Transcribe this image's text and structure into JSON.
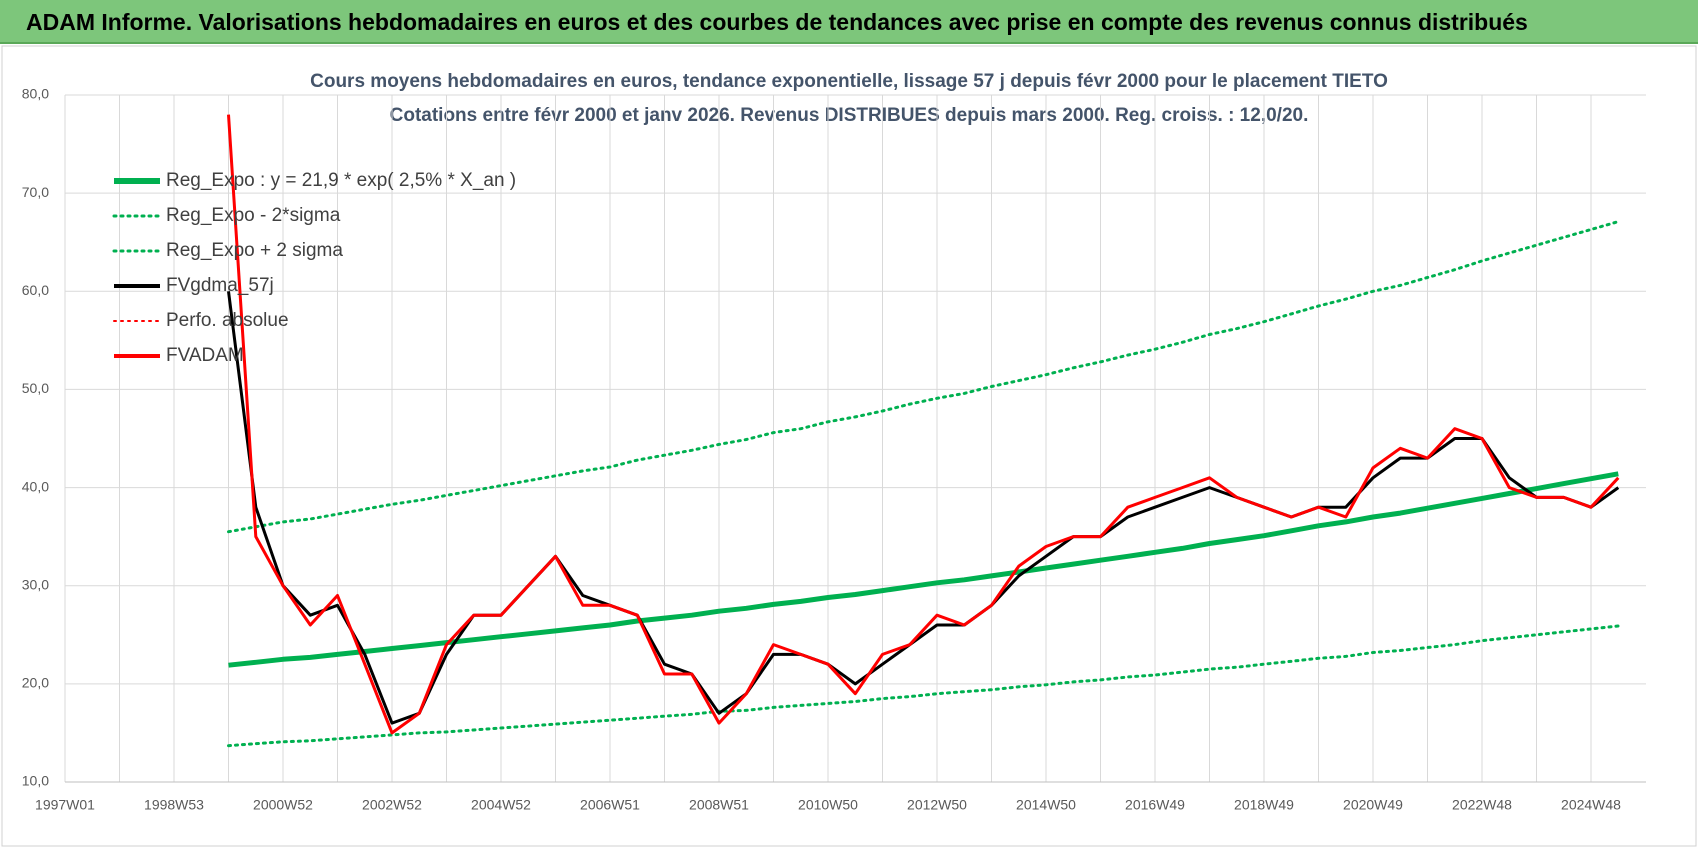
{
  "header": {
    "title": "ADAM Informe. Valorisations hebdomadaires en euros et des courbes de tendances avec prise en compte des revenus connus distribués"
  },
  "chart_data": {
    "type": "line",
    "title": "Cours moyens hebdomadaires en euros, tendance exponentielle, lissage 57 j depuis févr 2000 pour le placement TIETO",
    "subtitle": "Cotations entre févr 2000 et janv 2026. Revenus DISTRIBUES depuis mars 2000. Reg. croiss. : 12,0/20.",
    "categories": [
      "1997W01",
      null,
      null,
      null,
      "1998W53",
      null,
      null,
      null,
      "2000W52",
      null,
      null,
      null,
      "2002W52",
      null,
      null,
      null,
      "2004W52",
      null,
      null,
      null,
      "2006W51",
      null,
      null,
      null,
      "2008W51",
      null,
      null,
      null,
      "2010W50",
      null,
      null,
      null,
      "2012W50",
      null,
      null,
      null,
      "2014W50",
      null,
      null,
      null,
      "2016W49",
      null,
      null,
      null,
      "2018W49",
      null,
      null,
      null,
      "2020W49",
      null,
      null,
      null,
      "2022W48",
      null,
      null,
      null,
      "2024W48",
      null
    ],
    "ylim": [
      10,
      80
    ],
    "yticks": [
      {
        "value": 10,
        "label": "10,0"
      },
      {
        "value": 20,
        "label": "20,0"
      },
      {
        "value": 30,
        "label": "30,0"
      },
      {
        "value": 40,
        "label": "40,0"
      },
      {
        "value": 50,
        "label": "50,0"
      },
      {
        "value": 60,
        "label": "60,0"
      },
      {
        "value": 70,
        "label": "70,0"
      },
      {
        "value": 80,
        "label": "80,0"
      }
    ],
    "grid": true,
    "legend": "top-left",
    "series": [
      {
        "name": "Reg_Expo : y = 21,9 * exp( 2,5% *  X_an )",
        "color": "#00b050",
        "dash": "solid",
        "width": 5,
        "values": [
          null,
          null,
          null,
          null,
          null,
          null,
          21.9,
          22.2,
          22.5,
          22.7,
          23.0,
          23.3,
          23.6,
          23.9,
          24.2,
          24.5,
          24.8,
          25.1,
          25.4,
          25.7,
          26.0,
          26.4,
          26.7,
          27.0,
          27.4,
          27.7,
          28.1,
          28.4,
          28.8,
          29.1,
          29.5,
          29.9,
          30.3,
          30.6,
          31.0,
          31.4,
          31.8,
          32.2,
          32.6,
          33.0,
          33.4,
          33.8,
          34.3,
          34.7,
          35.1,
          35.6,
          36.1,
          36.5,
          37.0,
          37.4,
          37.9,
          38.4,
          38.9,
          39.4,
          39.9,
          40.4,
          40.9,
          41.4
        ]
      },
      {
        "name": "Reg_Expo - 2*sigma",
        "color": "#00b050",
        "dash": "dotted",
        "width": 3,
        "values": [
          null,
          null,
          null,
          null,
          null,
          null,
          13.7,
          13.9,
          14.1,
          14.2,
          14.4,
          14.6,
          14.8,
          15.0,
          15.1,
          15.3,
          15.5,
          15.7,
          15.9,
          16.1,
          16.3,
          16.5,
          16.7,
          16.9,
          17.2,
          17.3,
          17.6,
          17.8,
          18.0,
          18.2,
          18.5,
          18.7,
          19.0,
          19.2,
          19.4,
          19.7,
          19.9,
          20.2,
          20.4,
          20.7,
          20.9,
          21.2,
          21.5,
          21.7,
          22.0,
          22.3,
          22.6,
          22.8,
          23.2,
          23.4,
          23.7,
          24.0,
          24.4,
          24.7,
          25.0,
          25.3,
          25.6,
          25.9
        ]
      },
      {
        "name": "Reg_Expo + 2 sigma",
        "color": "#00b050",
        "dash": "dotted",
        "width": 3,
        "values": [
          null,
          null,
          null,
          null,
          null,
          null,
          35.5,
          36.0,
          36.5,
          36.8,
          37.3,
          37.8,
          38.3,
          38.7,
          39.2,
          39.7,
          40.2,
          40.7,
          41.2,
          41.7,
          42.1,
          42.8,
          43.3,
          43.8,
          44.4,
          44.9,
          45.6,
          46.0,
          46.7,
          47.2,
          47.8,
          48.5,
          49.1,
          49.6,
          50.3,
          50.9,
          51.5,
          52.2,
          52.8,
          53.5,
          54.1,
          54.8,
          55.6,
          56.2,
          56.9,
          57.7,
          58.5,
          59.2,
          60.0,
          60.6,
          61.4,
          62.2,
          63.1,
          63.9,
          64.7,
          65.5,
          66.3,
          67.1
        ]
      },
      {
        "name": "FVgdma_57j",
        "color": "#000000",
        "dash": "solid",
        "width": 3,
        "values": [
          null,
          null,
          null,
          null,
          null,
          null,
          60,
          38,
          30,
          27,
          28,
          23,
          16,
          17,
          23,
          27,
          27,
          30,
          33,
          29,
          28,
          27,
          22,
          21,
          17,
          19,
          23,
          23,
          22,
          20,
          22,
          24,
          26,
          26,
          28,
          31,
          33,
          35,
          35,
          37,
          38,
          39,
          40,
          39,
          38,
          37,
          38,
          38,
          41,
          43,
          43,
          45,
          45,
          41,
          39,
          39,
          38,
          40
        ]
      },
      {
        "name": "Perfo. absolue",
        "color": "#ff0000",
        "dash": "dotted",
        "width": 2,
        "values": [
          null,
          null,
          null,
          null,
          null,
          null,
          null,
          null,
          null,
          null,
          null,
          null,
          null,
          null,
          null,
          null,
          null,
          null,
          null,
          null,
          null,
          null,
          null,
          null,
          null,
          null,
          null,
          null,
          null,
          null,
          null,
          null,
          null,
          null,
          null,
          null,
          null,
          null,
          null,
          null,
          null,
          null,
          null,
          null,
          null,
          null,
          null,
          null,
          null,
          null,
          null,
          null,
          null,
          null,
          null,
          null,
          null,
          null
        ]
      },
      {
        "name": "FVADAM",
        "color": "#ff0000",
        "dash": "solid",
        "width": 3,
        "values": [
          null,
          null,
          null,
          null,
          null,
          null,
          78,
          35,
          30,
          26,
          29,
          22,
          15,
          17,
          24,
          27,
          27,
          30,
          33,
          28,
          28,
          27,
          21,
          21,
          16,
          19,
          24,
          23,
          22,
          19,
          23,
          24,
          27,
          26,
          28,
          32,
          34,
          35,
          35,
          38,
          39,
          40,
          41,
          39,
          38,
          37,
          38,
          37,
          42,
          44,
          43,
          46,
          45,
          40,
          39,
          39,
          38,
          41
        ]
      }
    ]
  }
}
